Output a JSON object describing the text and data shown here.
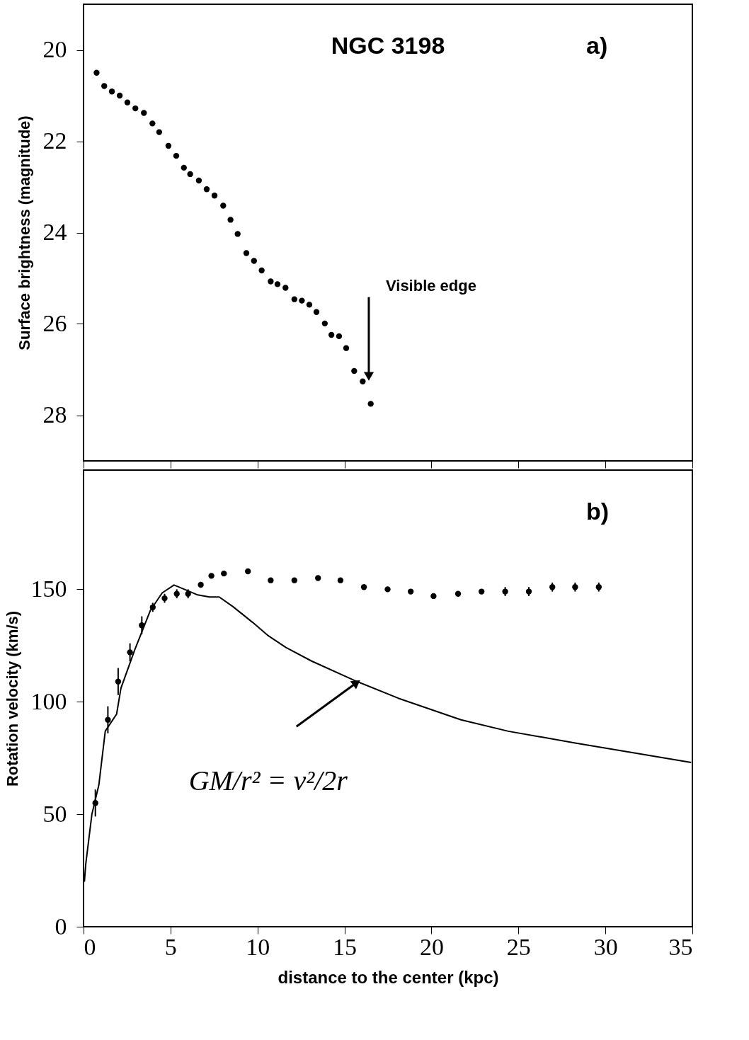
{
  "chart_data": [
    {
      "type": "scatter",
      "title": "NGC 3198",
      "ylabel": "Surface brightness (magnitude)",
      "tick_labels": "y",
      "marker": "circle",
      "grid": false,
      "xlim": [
        0,
        35
      ],
      "xticks": [
        0,
        5,
        10,
        15,
        20,
        25,
        30,
        35
      ],
      "ylim": [
        29,
        19
      ],
      "yticks": [
        20,
        22,
        24,
        26,
        28
      ],
      "annotations": [
        "a)",
        {
          "text": "Visible edge",
          "x": 16.4,
          "y": 27.15
        }
      ],
      "series": [
        {
          "color": "#000000",
          "x": [
            0.75,
            1.19,
            1.63,
            2.08,
            2.52,
            2.98,
            3.47,
            3.96,
            4.35,
            4.88,
            5.33,
            5.77,
            6.13,
            6.63,
            7.08,
            7.53,
            8.03,
            8.45,
            8.86,
            9.36,
            9.8,
            10.24,
            10.76,
            11.15,
            11.61,
            12.12,
            12.55,
            12.98,
            13.39,
            13.87,
            14.25,
            14.69,
            15.1,
            15.56,
            16.05,
            16.51
          ],
          "values": [
            20.5,
            20.79,
            20.91,
            21.0,
            21.15,
            21.28,
            21.38,
            21.61,
            21.8,
            22.1,
            22.32,
            22.58,
            22.72,
            22.86,
            23.05,
            23.19,
            23.41,
            23.72,
            24.03,
            24.45,
            24.62,
            24.83,
            25.07,
            25.13,
            25.21,
            25.46,
            25.49,
            25.58,
            25.74,
            25.99,
            26.24,
            26.27,
            26.53,
            27.03,
            27.26,
            27.75
          ]
        }
      ]
    },
    {
      "type": "scatter",
      "xlabel": "distance to the center (kpc)",
      "ylabel": "Rotation velocity (km/s)",
      "marker": "circle",
      "grid": false,
      "xlim": [
        0,
        35
      ],
      "xticks": [
        0,
        5,
        10,
        15,
        20,
        25,
        30,
        35
      ],
      "ylim": [
        0,
        203
      ],
      "yticks": [
        0,
        50,
        100,
        150
      ],
      "annotations": [
        "b)",
        {
          "text": "GM/r² = v²/2r",
          "x": 15.7,
          "y": 108.5
        }
      ],
      "series": [
        {
          "color": "#000000",
          "x": [
            0.68,
            1.4,
            1.99,
            2.67,
            3.35,
            3.98,
            4.66,
            5.36,
            6.01,
            6.74,
            7.35,
            8.07,
            9.45,
            10.76,
            12.12,
            13.48,
            14.77,
            16.12,
            17.48,
            18.81,
            20.12,
            21.53,
            22.88,
            24.24,
            25.6,
            26.95,
            28.26,
            29.62
          ],
          "values": [
            55,
            92,
            109,
            122,
            134,
            142,
            146,
            148,
            148,
            152,
            156,
            157,
            158,
            154,
            154,
            155,
            154,
            151,
            150,
            149,
            147,
            148,
            149,
            149,
            149,
            151,
            151,
            151
          ],
          "errors": [
            6,
            6,
            6,
            4,
            4,
            2,
            2,
            2,
            2,
            null,
            null,
            null,
            null,
            null,
            null,
            null,
            null,
            null,
            null,
            null,
            null,
            null,
            null,
            2,
            2,
            2,
            2,
            2
          ]
        },
        {
          "type": "line",
          "color": "#000000",
          "marker": "none",
          "line_style": "solid",
          "x": [
            0.05,
            0.13,
            0.48,
            0.88,
            1.25,
            1.9,
            2.15,
            2.94,
            3.84,
            4.52,
            5.2,
            5.77,
            6.56,
            7.24,
            7.8,
            8.59,
            9.72,
            10.63,
            11.64,
            13.11,
            15.6,
            18.09,
            21.7,
            24.42,
            28.26,
            31.66,
            34.93
          ],
          "values": [
            20,
            28,
            50,
            63,
            87,
            94.5,
            106,
            123,
            140.6,
            148.4,
            151.9,
            150.1,
            147.5,
            146.6,
            146.6,
            142.3,
            135.3,
            129.3,
            124.1,
            118.1,
            109.4,
            101.6,
            92,
            86.9,
            81.7,
            77.3,
            73
          ]
        }
      ]
    }
  ]
}
